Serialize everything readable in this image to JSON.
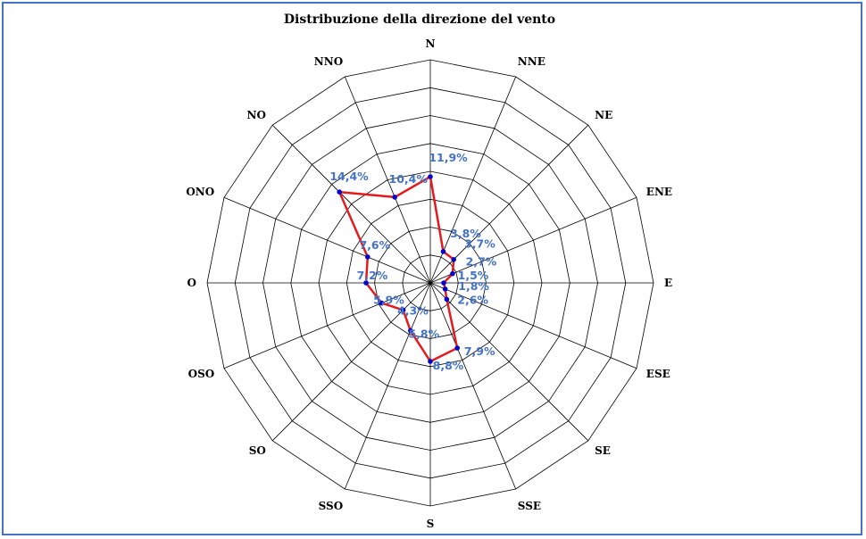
{
  "chart_data": {
    "type": "radar",
    "title": "Distribuzione della direzione del vento",
    "categories": [
      "N",
      "NNE",
      "NE",
      "ENE",
      "E",
      "ESE",
      "SE",
      "SSE",
      "S",
      "SSO",
      "SO",
      "OSO",
      "O",
      "ONO",
      "NO",
      "NNO"
    ],
    "series": [
      {
        "values": [
          11.9,
          3.8,
          3.7,
          2.7,
          1.5,
          1.8,
          2.6,
          7.9,
          8.8,
          5.8,
          4.3,
          5.9,
          7.2,
          7.6,
          14.4,
          10.4
        ],
        "labels": [
          "11,9%",
          "3,8%",
          "3,7%",
          "2,7%",
          "1,5%",
          "1,8%",
          "2,6%",
          "7,9%",
          "8,8%",
          "5,8%",
          "4,3%",
          "5,9%",
          "7,2%",
          "7,6%",
          "14,4%",
          "10,4%"
        ]
      }
    ],
    "rlim": [
      0,
      25
    ],
    "rings": 8,
    "grid": true,
    "legend": "none",
    "colors": {
      "line": "#e41a1c",
      "marker": "#0000cc",
      "labels": "#4472c4",
      "grid": "#000000",
      "frame": "#4472c4"
    }
  }
}
